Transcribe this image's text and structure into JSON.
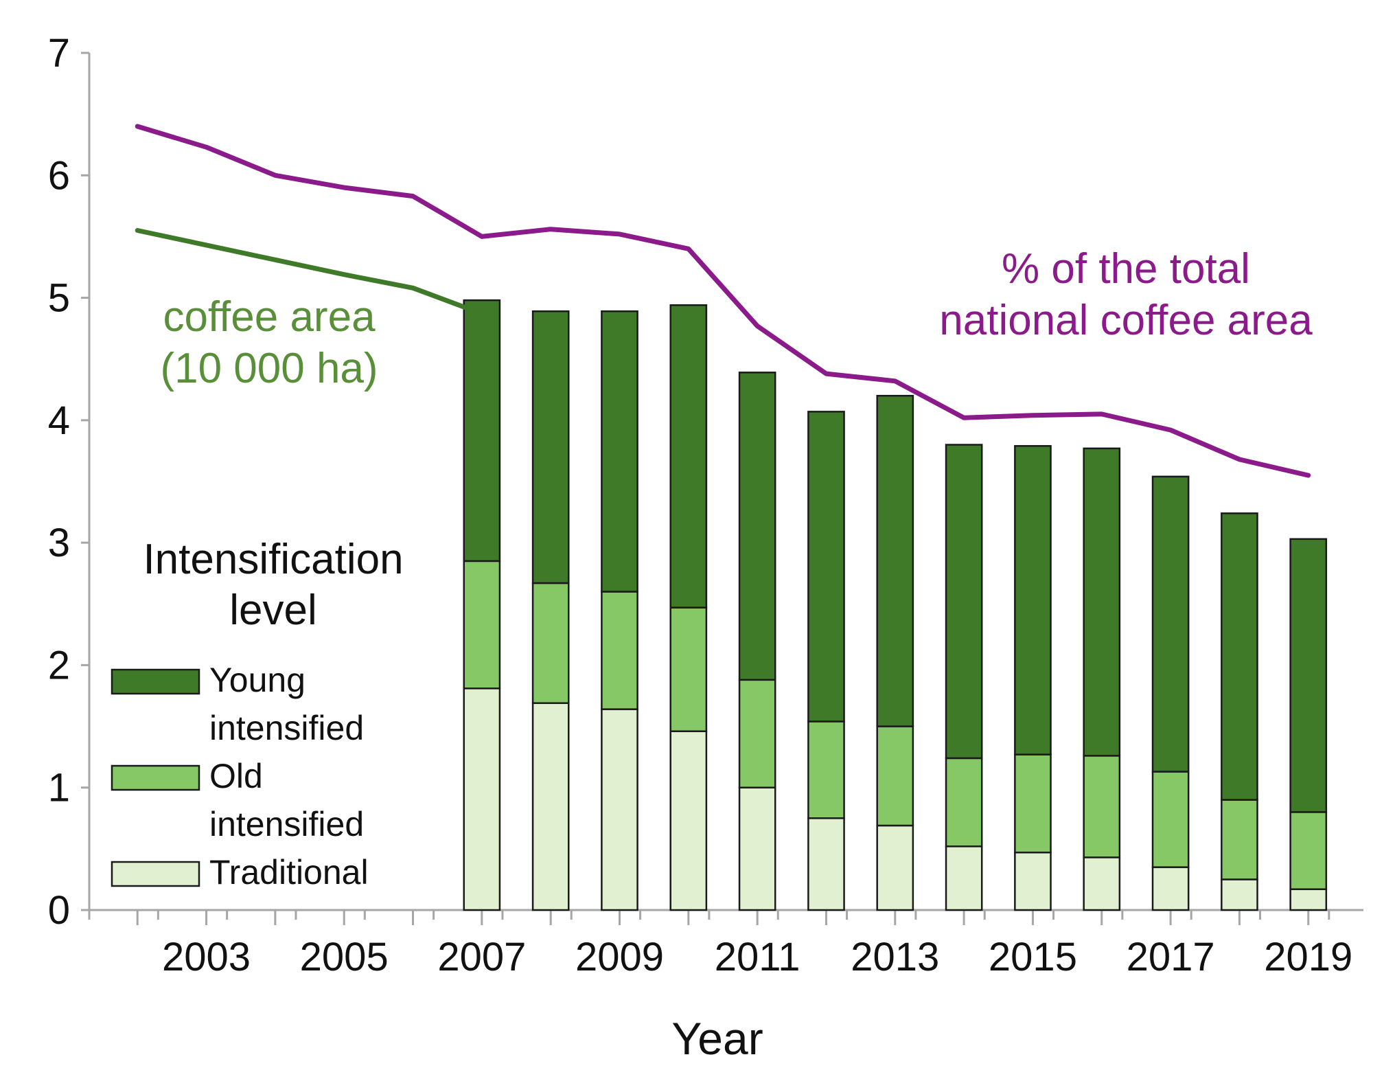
{
  "chart_data": {
    "type": "bar",
    "xlabel": "Year",
    "ylabel": "",
    "ylim": [
      0,
      7
    ],
    "yticks": [
      0,
      1,
      2,
      3,
      4,
      5,
      6,
      7
    ],
    "xlim": [
      2001.3,
      2019.8
    ],
    "xticks": [
      2002,
      2003,
      2004,
      2005,
      2006,
      2007,
      2008,
      2009,
      2010,
      2011,
      2012,
      2013,
      2014,
      2015,
      2016,
      2017,
      2018,
      2019
    ],
    "xtick_labels": [
      "2003",
      "2005",
      "2007",
      "2009",
      "2011",
      "2013",
      "2015",
      "2017",
      "2019"
    ],
    "xtick_label_positions": [
      2003,
      2005,
      2007,
      2009,
      2011,
      2013,
      2015,
      2017,
      2019
    ],
    "grid": false,
    "legend_placement": "left",
    "legend_title": [
      "Intensification",
      "level"
    ],
    "categories": [
      "2007",
      "2008",
      "2009",
      "2010",
      "2011",
      "2012",
      "2013",
      "2014",
      "2015",
      "2016",
      "2017",
      "2018",
      "2019"
    ],
    "series": [
      {
        "name": "Traditional",
        "name_lines": [
          "Traditional"
        ],
        "color": "#e0f0d0",
        "values": [
          1.81,
          1.69,
          1.64,
          1.46,
          1.0,
          0.75,
          0.69,
          0.52,
          0.47,
          0.43,
          0.35,
          0.25,
          0.17
        ]
      },
      {
        "name": "Old intensified",
        "name_lines": [
          "Old",
          "intensified"
        ],
        "color": "#86c866",
        "values": [
          1.04,
          0.98,
          0.96,
          1.01,
          0.88,
          0.79,
          0.81,
          0.72,
          0.8,
          0.83,
          0.78,
          0.65,
          0.63
        ]
      },
      {
        "name": "Young intensified",
        "name_lines": [
          "Young",
          "intensified"
        ],
        "color": "#3f7a29",
        "values": [
          2.13,
          2.22,
          2.29,
          2.47,
          2.51,
          2.53,
          2.7,
          2.56,
          2.52,
          2.51,
          2.41,
          2.34,
          2.23
        ]
      }
    ],
    "lines": [
      {
        "name": "coffee area (10 000 ha)",
        "label_lines": [
          "coffee area",
          "(10 000 ha)"
        ],
        "color": "#3f7a29",
        "label_color": "#5a8f3a",
        "x": [
          2002,
          2003,
          2004,
          2005,
          2006,
          2007
        ],
        "y": [
          5.55,
          5.43,
          5.31,
          5.19,
          5.08,
          4.87
        ]
      },
      {
        "name": "% of the total national coffee area",
        "label_lines": [
          "% of the total",
          "national coffee area"
        ],
        "color": "#8b1a8b",
        "label_color": "#8b1a8b",
        "x": [
          2002,
          2003,
          2004,
          2005,
          2006,
          2007,
          2008,
          2009,
          2010,
          2011,
          2012,
          2013,
          2014,
          2015,
          2016,
          2017,
          2018,
          2019
        ],
        "y": [
          6.4,
          6.23,
          6.0,
          5.9,
          5.83,
          5.5,
          5.56,
          5.52,
          5.4,
          4.77,
          4.38,
          4.32,
          4.02,
          4.04,
          4.05,
          3.92,
          3.68,
          3.55
        ]
      }
    ]
  }
}
